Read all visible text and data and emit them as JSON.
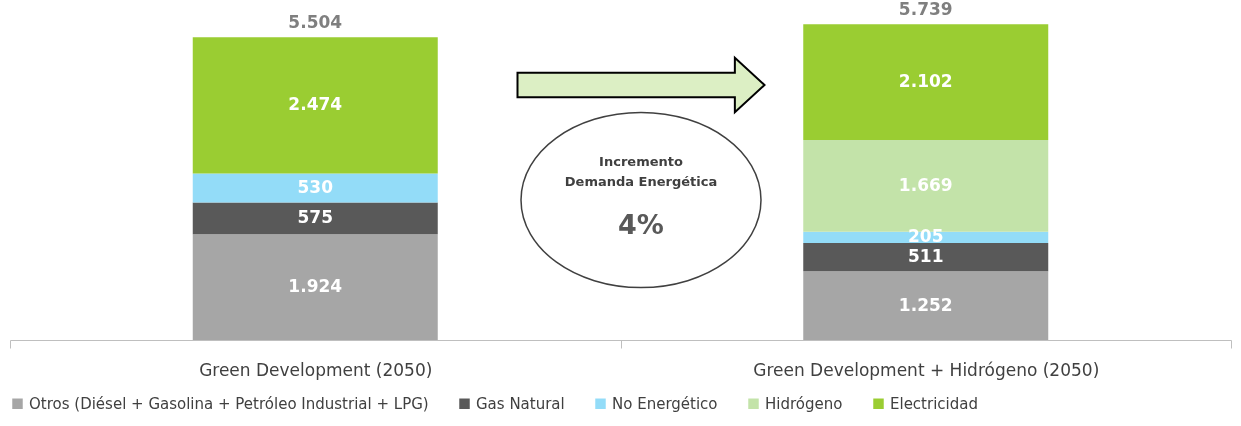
{
  "chart_data": {
    "type": "bar",
    "stacked": true,
    "categories": [
      "Green Development (2050)",
      "Green Development + Hidrógeno (2050)"
    ],
    "series": [
      {
        "name": "Otros (Diésel + Gasolina + Petróleo Industrial + LPG)",
        "color": "#a6a6a6",
        "values": [
          1924,
          1252
        ],
        "value_labels": [
          "1.924",
          "1.252"
        ]
      },
      {
        "name": "Gas Natural",
        "color": "#595959",
        "values": [
          575,
          511
        ],
        "value_labels": [
          "575",
          "511"
        ]
      },
      {
        "name": "No Energético",
        "color": "#93dcf8",
        "values": [
          530,
          205
        ],
        "value_labels": [
          "530",
          "205"
        ]
      },
      {
        "name": "Hidrógeno",
        "color": "#c3e3a9",
        "values": [
          null,
          1669
        ],
        "value_labels": [
          null,
          "1.669"
        ]
      },
      {
        "name": "Electricidad",
        "color": "#9acd32",
        "values": [
          2474,
          2102
        ],
        "value_labels": [
          "2.474",
          "2.102"
        ]
      }
    ],
    "totals": [
      "5.504",
      "5.739"
    ],
    "annotations": [
      "Incremento Demanda Energética",
      "4%"
    ],
    "legend": "bottom",
    "grid": false
  }
}
